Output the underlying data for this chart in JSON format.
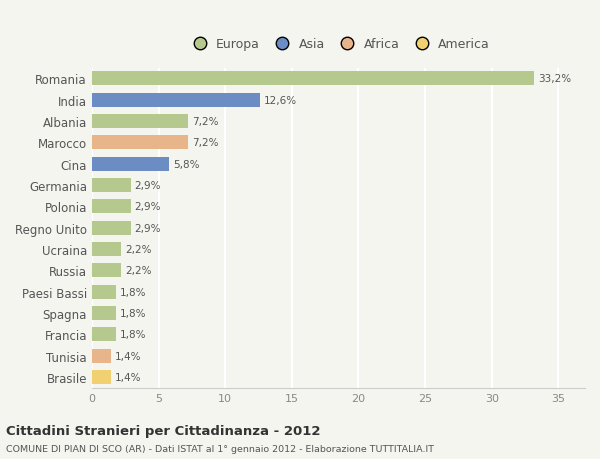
{
  "categories": [
    "Romania",
    "India",
    "Albania",
    "Marocco",
    "Cina",
    "Germania",
    "Polonia",
    "Regno Unito",
    "Ucraina",
    "Russia",
    "Paesi Bassi",
    "Spagna",
    "Francia",
    "Tunisia",
    "Brasile"
  ],
  "values": [
    33.2,
    12.6,
    7.2,
    7.2,
    5.8,
    2.9,
    2.9,
    2.9,
    2.2,
    2.2,
    1.8,
    1.8,
    1.8,
    1.4,
    1.4
  ],
  "labels": [
    "33,2%",
    "12,6%",
    "7,2%",
    "7,2%",
    "5,8%",
    "2,9%",
    "2,9%",
    "2,9%",
    "2,2%",
    "2,2%",
    "1,8%",
    "1,8%",
    "1,8%",
    "1,4%",
    "1,4%"
  ],
  "colors": [
    "#b5c98e",
    "#6b8dc4",
    "#b5c98e",
    "#e8b48a",
    "#6b8dc4",
    "#b5c98e",
    "#b5c98e",
    "#b5c98e",
    "#b5c98e",
    "#b5c98e",
    "#b5c98e",
    "#b5c98e",
    "#b5c98e",
    "#e8b48a",
    "#f0d070"
  ],
  "legend_labels": [
    "Europa",
    "Asia",
    "Africa",
    "America"
  ],
  "legend_colors": [
    "#b5c98e",
    "#6b8dc4",
    "#e8b48a",
    "#f0d070"
  ],
  "title": "Cittadini Stranieri per Cittadinanza - 2012",
  "subtitle": "COMUNE DI PIAN DI SCO (AR) - Dati ISTAT al 1° gennaio 2012 - Elaborazione TUTTITALIA.IT",
  "xlim": [
    0,
    37
  ],
  "xticks": [
    0,
    5,
    10,
    15,
    20,
    25,
    30,
    35
  ],
  "background_color": "#f5f5f0",
  "grid_color": "#ffffff",
  "bar_height": 0.65
}
